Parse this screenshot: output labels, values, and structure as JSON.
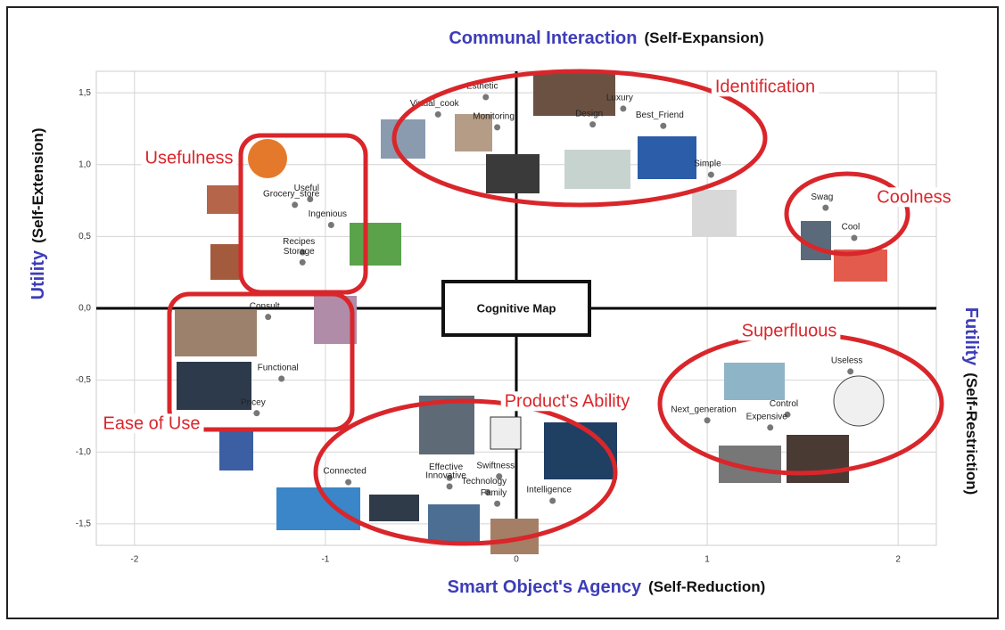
{
  "chart_data": {
    "type": "scatter",
    "title_top": {
      "main": "Communal Interaction",
      "sub": "(Self-Expansion)"
    },
    "title_bottom": {
      "main": "Smart Object's Agency",
      "sub": "(Self-Reduction)"
    },
    "title_left": {
      "main": "Utility",
      "sub": "(Self-Extension)"
    },
    "title_right": {
      "main": "Futility",
      "sub": "(Self-Restriction)"
    },
    "center_label": "Cognitive Map",
    "xlim": [
      -2.2,
      2.2
    ],
    "ylim": [
      -1.65,
      1.65
    ],
    "xticks": [
      -2,
      -1,
      0,
      1,
      2
    ],
    "yticks": [
      {
        "value": 1.5,
        "label": "1,5"
      },
      {
        "value": 1.0,
        "label": "1,0"
      },
      {
        "value": 0.5,
        "label": "0,5"
      },
      {
        "value": 0.0,
        "label": "0,0"
      },
      {
        "value": -0.5,
        "label": "-0,5"
      },
      {
        "value": -1.0,
        "label": "-1,0"
      },
      {
        "value": -1.5,
        "label": "-1,5"
      }
    ],
    "grid": true,
    "color": "#777777",
    "point_labels": [
      "Esthetic",
      "Virtual_cook",
      "Monitoring",
      "Luxury",
      "Best_Friend",
      "Design",
      "Simple",
      "Useful",
      "Grocery_store",
      "Ingenious",
      "Recipes",
      "Storage",
      "Swag",
      "Cool",
      "Consult",
      "Functional",
      "Pricey",
      "Useless",
      "Next_generation",
      "Control",
      "Expensive",
      "Connected",
      "Effective",
      "Innovative",
      "Swiftness",
      "Technology",
      "Intelligence",
      "Family"
    ],
    "x": [
      -0.16,
      -0.41,
      -0.1,
      0.56,
      0.77,
      0.4,
      1.02,
      -1.08,
      -1.16,
      -0.97,
      -1.12,
      -1.12,
      1.62,
      1.77,
      -1.3,
      -1.23,
      -1.36,
      1.75,
      1.0,
      1.42,
      1.33,
      -0.88,
      -0.35,
      -0.35,
      -0.09,
      -0.15,
      0.19,
      -0.1
    ],
    "values": [
      1.47,
      1.35,
      1.26,
      1.39,
      1.27,
      1.28,
      0.93,
      0.76,
      0.72,
      0.58,
      0.39,
      0.32,
      0.7,
      0.49,
      -0.06,
      -0.49,
      -0.73,
      -0.44,
      -0.78,
      -0.74,
      -0.83,
      -1.21,
      -1.18,
      -1.24,
      -1.17,
      -1.28,
      -1.34,
      -1.36
    ],
    "annotations": [
      "Identification",
      "Usefulness",
      "Coolness",
      "Superfluous",
      "Product's Ability",
      "Ease of Use"
    ],
    "annotation_color": "#d9262b"
  }
}
